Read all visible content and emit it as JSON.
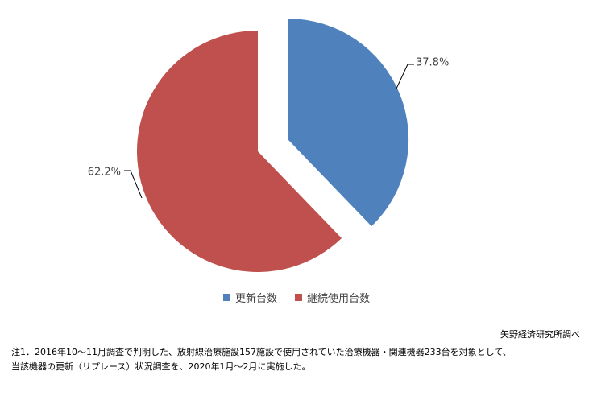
{
  "chart_data": {
    "type": "pie",
    "categories": [
      "更新台数",
      "継続使用台数"
    ],
    "values": [
      37.8,
      62.2
    ],
    "labels": [
      "37.8%",
      "62.2%"
    ],
    "colors": [
      "#4f81bd",
      "#c0504d"
    ],
    "exploded": [
      true,
      false
    ],
    "legend_position": "bottom"
  },
  "source": "矢野経済研究所調べ",
  "notes": [
    "注1．2016年10～11月調査で判明した、放射線治療施設157施設で使用されていた治療機器・関連機器233台を対象として、",
    "当該機器の更新（リプレース）状況調査を、2020年1月～2月に実施した。"
  ]
}
